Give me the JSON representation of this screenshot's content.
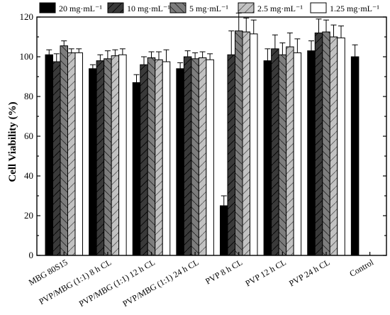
{
  "chart_data": {
    "type": "bar",
    "title": "",
    "xlabel": "",
    "ylabel": "Cell Viability (%)",
    "ylim": [
      0,
      120
    ],
    "yticks": [
      0,
      20,
      40,
      60,
      80,
      100,
      120
    ],
    "grid": false,
    "legend_position": "top",
    "categories": [
      "MBG 80S15",
      "PVP/MBG (1:1) 8 h CL",
      "PVP/MBG (1:1) 12 h CL",
      "PVP/MBG (1:1) 24 h CL",
      "PVP 8 h CL",
      "PVP 12 h CL",
      "PVP 24 h CL",
      "Control"
    ],
    "series": [
      {
        "name": "20 mg·mL⁻¹",
        "color": "#000000",
        "pattern": "solid",
        "values": [
          101,
          94,
          87,
          94,
          25,
          98,
          103,
          100
        ],
        "errors": [
          2.5,
          2,
          4,
          3,
          5,
          6,
          5,
          6
        ]
      },
      {
        "name": "10 mg·mL⁻¹",
        "color": "#3a3a3a",
        "pattern": "hatch-a",
        "values": [
          97.5,
          98,
          96,
          100,
          101,
          104,
          112,
          null
        ],
        "errors": [
          4,
          3,
          4,
          3,
          12,
          7,
          7,
          null
        ]
      },
      {
        "name": "5 mg·mL⁻¹",
        "color": "#7d7d7d",
        "pattern": "hatch-b",
        "values": [
          105.5,
          99,
          99.5,
          99,
          113,
          101,
          112.5,
          null
        ],
        "errors": [
          2.5,
          4,
          3,
          3,
          9,
          6,
          6,
          null
        ]
      },
      {
        "name": "2.5 mg·mL⁻¹",
        "color": "#c2c2c2",
        "pattern": "hatch-c",
        "values": [
          102,
          100.5,
          98.5,
          99.5,
          112.5,
          105,
          110,
          null
        ],
        "errors": [
          2,
          3,
          4,
          3,
          7,
          7,
          6,
          null
        ]
      },
      {
        "name": "1.25 mg·mL⁻¹",
        "color": "#ffffff",
        "pattern": "solid",
        "values": [
          102,
          101,
          97.5,
          98.5,
          111.5,
          102,
          109.5,
          null
        ],
        "errors": [
          2,
          3,
          6,
          3,
          7,
          7,
          6,
          null
        ]
      }
    ]
  }
}
